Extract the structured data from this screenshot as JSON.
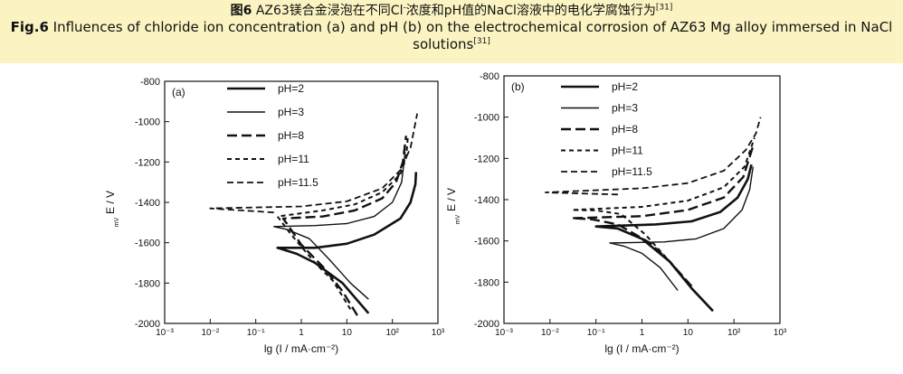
{
  "caption": {
    "zh_label": "图6",
    "zh_text": "AZ63镁合金浸泡在不同Cl",
    "zh_sup_minus": "-",
    "zh_text2": "浓度和pH值的NaCl溶液中的电化学腐蚀行为",
    "ref": "[31]",
    "en_label": "Fig.6",
    "en_text": "Influences of chloride ion concentration (a) and pH (b) on the electrochemical corrosion of AZ63 Mg alloy immersed in NaCl solutions"
  },
  "colors": {
    "caption_bg": "#fbf4c2",
    "line": "#111111"
  },
  "chart_data": [
    {
      "type": "line",
      "panel_label": "(a)",
      "xlabel": "lg (I / mA·cm⁻²)",
      "ylabel": "E / V",
      "ylabel_sub": "mV",
      "xscale": "log10",
      "xlim": [
        0.001,
        1000
      ],
      "ylim": [
        -2000,
        -800
      ],
      "x_ticks": [
        0.001,
        0.01,
        0.1,
        1,
        10,
        100,
        1000
      ],
      "x_tick_labels": [
        "10⁻³",
        "10⁻²",
        "10⁻¹",
        "1",
        "10",
        "10²",
        "10³"
      ],
      "y_ticks": [
        -800,
        -1000,
        -1200,
        -1400,
        -1600,
        -1800,
        -2000
      ],
      "legend_position": "top-center",
      "series": [
        {
          "name": "pH=2",
          "style": "thick-solid",
          "ecorr": -1620,
          "cathodic": [
            [
              30,
              -1950
            ],
            [
              8,
              -1800
            ],
            [
              2,
              -1700
            ],
            [
              0.8,
              -1655
            ],
            [
              0.3,
              -1625
            ]
          ],
          "anodic": [
            [
              0.3,
              -1620
            ],
            [
              2,
              -1625
            ],
            [
              10,
              -1605
            ],
            [
              40,
              -1560
            ],
            [
              150,
              -1480
            ],
            [
              250,
              -1400
            ],
            [
              320,
              -1310
            ],
            [
              330,
              -1250
            ]
          ]
        },
        {
          "name": "pH=3",
          "style": "thin-solid",
          "ecorr": -1520,
          "cathodic": [
            [
              30,
              -1880
            ],
            [
              12,
              -1800
            ],
            [
              4,
              -1680
            ],
            [
              1.5,
              -1580
            ],
            [
              0.5,
              -1535
            ],
            [
              0.25,
              -1520
            ]
          ],
          "anodic": [
            [
              0.25,
              -1515
            ],
            [
              2,
              -1515
            ],
            [
              10,
              -1505
            ],
            [
              40,
              -1470
            ],
            [
              100,
              -1400
            ],
            [
              160,
              -1300
            ],
            [
              180,
              -1200
            ],
            [
              190,
              -1150
            ]
          ]
        },
        {
          "name": "pH=8",
          "style": "long-dash",
          "ecorr": -1480,
          "cathodic": [
            [
              17,
              -1960
            ],
            [
              8,
              -1840
            ],
            [
              3,
              -1720
            ],
            [
              1,
              -1610
            ],
            [
              0.5,
              -1510
            ],
            [
              0.4,
              -1480
            ]
          ],
          "anodic": [
            [
              0.4,
              -1480
            ],
            [
              3,
              -1470
            ],
            [
              15,
              -1440
            ],
            [
              60,
              -1380
            ],
            [
              120,
              -1300
            ],
            [
              170,
              -1200
            ],
            [
              200,
              -1070
            ]
          ]
        },
        {
          "name": "pH=11",
          "style": "short-dash",
          "ecorr": -1470,
          "cathodic": [
            [
              12,
              -1930
            ],
            [
              5,
              -1790
            ],
            [
              2,
              -1700
            ],
            [
              0.6,
              -1560
            ],
            [
              0.3,
              -1470
            ]
          ],
          "anodic": [
            [
              0.3,
              -1465
            ],
            [
              3,
              -1440
            ],
            [
              15,
              -1410
            ],
            [
              60,
              -1350
            ],
            [
              150,
              -1260
            ],
            [
              200,
              -1180
            ],
            [
              220,
              -1070
            ]
          ]
        },
        {
          "name": "pH=11.5",
          "style": "medium-dash",
          "ecorr": -1430,
          "cathodic": [
            [
              0.25,
              -1450
            ],
            [
              0.05,
              -1440
            ],
            [
              0.01,
              -1430
            ]
          ],
          "anodic": [
            [
              0.01,
              -1430
            ],
            [
              1,
              -1420
            ],
            [
              10,
              -1395
            ],
            [
              60,
              -1330
            ],
            [
              150,
              -1240
            ],
            [
              250,
              -1130
            ],
            [
              350,
              -960
            ]
          ]
        }
      ]
    },
    {
      "type": "line",
      "panel_label": "(b)",
      "xlabel": "lg (I / mA·cm⁻²)",
      "ylabel": "E / V",
      "ylabel_sub": "mV",
      "xscale": "log10",
      "xlim": [
        0.001,
        1000
      ],
      "ylim": [
        -2000,
        -800
      ],
      "x_ticks": [
        0.001,
        0.01,
        0.1,
        1,
        10,
        100,
        1000
      ],
      "x_tick_labels": [
        "10⁻³",
        "10⁻²",
        "10⁻¹",
        "1",
        "10",
        "10²",
        "10³"
      ],
      "y_ticks": [
        -800,
        -1000,
        -1200,
        -1400,
        -1600,
        -1800,
        -2000
      ],
      "legend_position": "top-left",
      "series": [
        {
          "name": "pH=2",
          "style": "thick-solid",
          "ecorr": -1530,
          "cathodic": [
            [
              35,
              -1940
            ],
            [
              12,
              -1830
            ],
            [
              4,
              -1700
            ],
            [
              1,
              -1590
            ],
            [
              0.3,
              -1540
            ],
            [
              0.1,
              -1530
            ]
          ],
          "anodic": [
            [
              0.1,
              -1530
            ],
            [
              2,
              -1520
            ],
            [
              12,
              -1505
            ],
            [
              50,
              -1460
            ],
            [
              120,
              -1390
            ],
            [
              200,
              -1300
            ],
            [
              240,
              -1230
            ]
          ]
        },
        {
          "name": "pH=3",
          "style": "thin-solid",
          "ecorr": -1610,
          "cathodic": [
            [
              6,
              -1840
            ],
            [
              2.5,
              -1730
            ],
            [
              1,
              -1660
            ],
            [
              0.4,
              -1625
            ],
            [
              0.2,
              -1610
            ]
          ],
          "anodic": [
            [
              0.2,
              -1610
            ],
            [
              3,
              -1605
            ],
            [
              15,
              -1590
            ],
            [
              60,
              -1540
            ],
            [
              150,
              -1450
            ],
            [
              220,
              -1350
            ],
            [
              260,
              -1240
            ]
          ]
        },
        {
          "name": "pH=8",
          "style": "long-dash",
          "ecorr": -1490,
          "cathodic": [
            [
              12,
              -1820
            ],
            [
              4,
              -1700
            ],
            [
              1.5,
              -1610
            ],
            [
              0.3,
              -1520
            ],
            [
              0.08,
              -1495
            ],
            [
              0.03,
              -1490
            ]
          ],
          "anodic": [
            [
              0.03,
              -1490
            ],
            [
              1,
              -1480
            ],
            [
              10,
              -1450
            ],
            [
              60,
              -1390
            ],
            [
              160,
              -1290
            ],
            [
              260,
              -1140
            ]
          ]
        },
        {
          "name": "pH=11",
          "style": "short-dash",
          "ecorr": -1450,
          "cathodic": [
            [
              10,
              -1800
            ],
            [
              4,
              -1700
            ],
            [
              1.2,
              -1570
            ],
            [
              0.35,
              -1470
            ],
            [
              0.1,
              -1452
            ],
            [
              0.03,
              -1450
            ]
          ],
          "anodic": [
            [
              0.03,
              -1450
            ],
            [
              1,
              -1435
            ],
            [
              10,
              -1405
            ],
            [
              60,
              -1340
            ],
            [
              170,
              -1240
            ],
            [
              280,
              -1100
            ]
          ]
        },
        {
          "name": "pH=11.5",
          "style": "medium-dash",
          "ecorr": -1365,
          "cathodic": [
            [
              0.3,
              -1375
            ],
            [
              0.05,
              -1370
            ],
            [
              0.008,
              -1365
            ]
          ],
          "anodic": [
            [
              0.008,
              -1365
            ],
            [
              1,
              -1345
            ],
            [
              10,
              -1320
            ],
            [
              60,
              -1260
            ],
            [
              180,
              -1160
            ],
            [
              300,
              -1080
            ],
            [
              380,
              -1000
            ]
          ]
        }
      ]
    }
  ]
}
